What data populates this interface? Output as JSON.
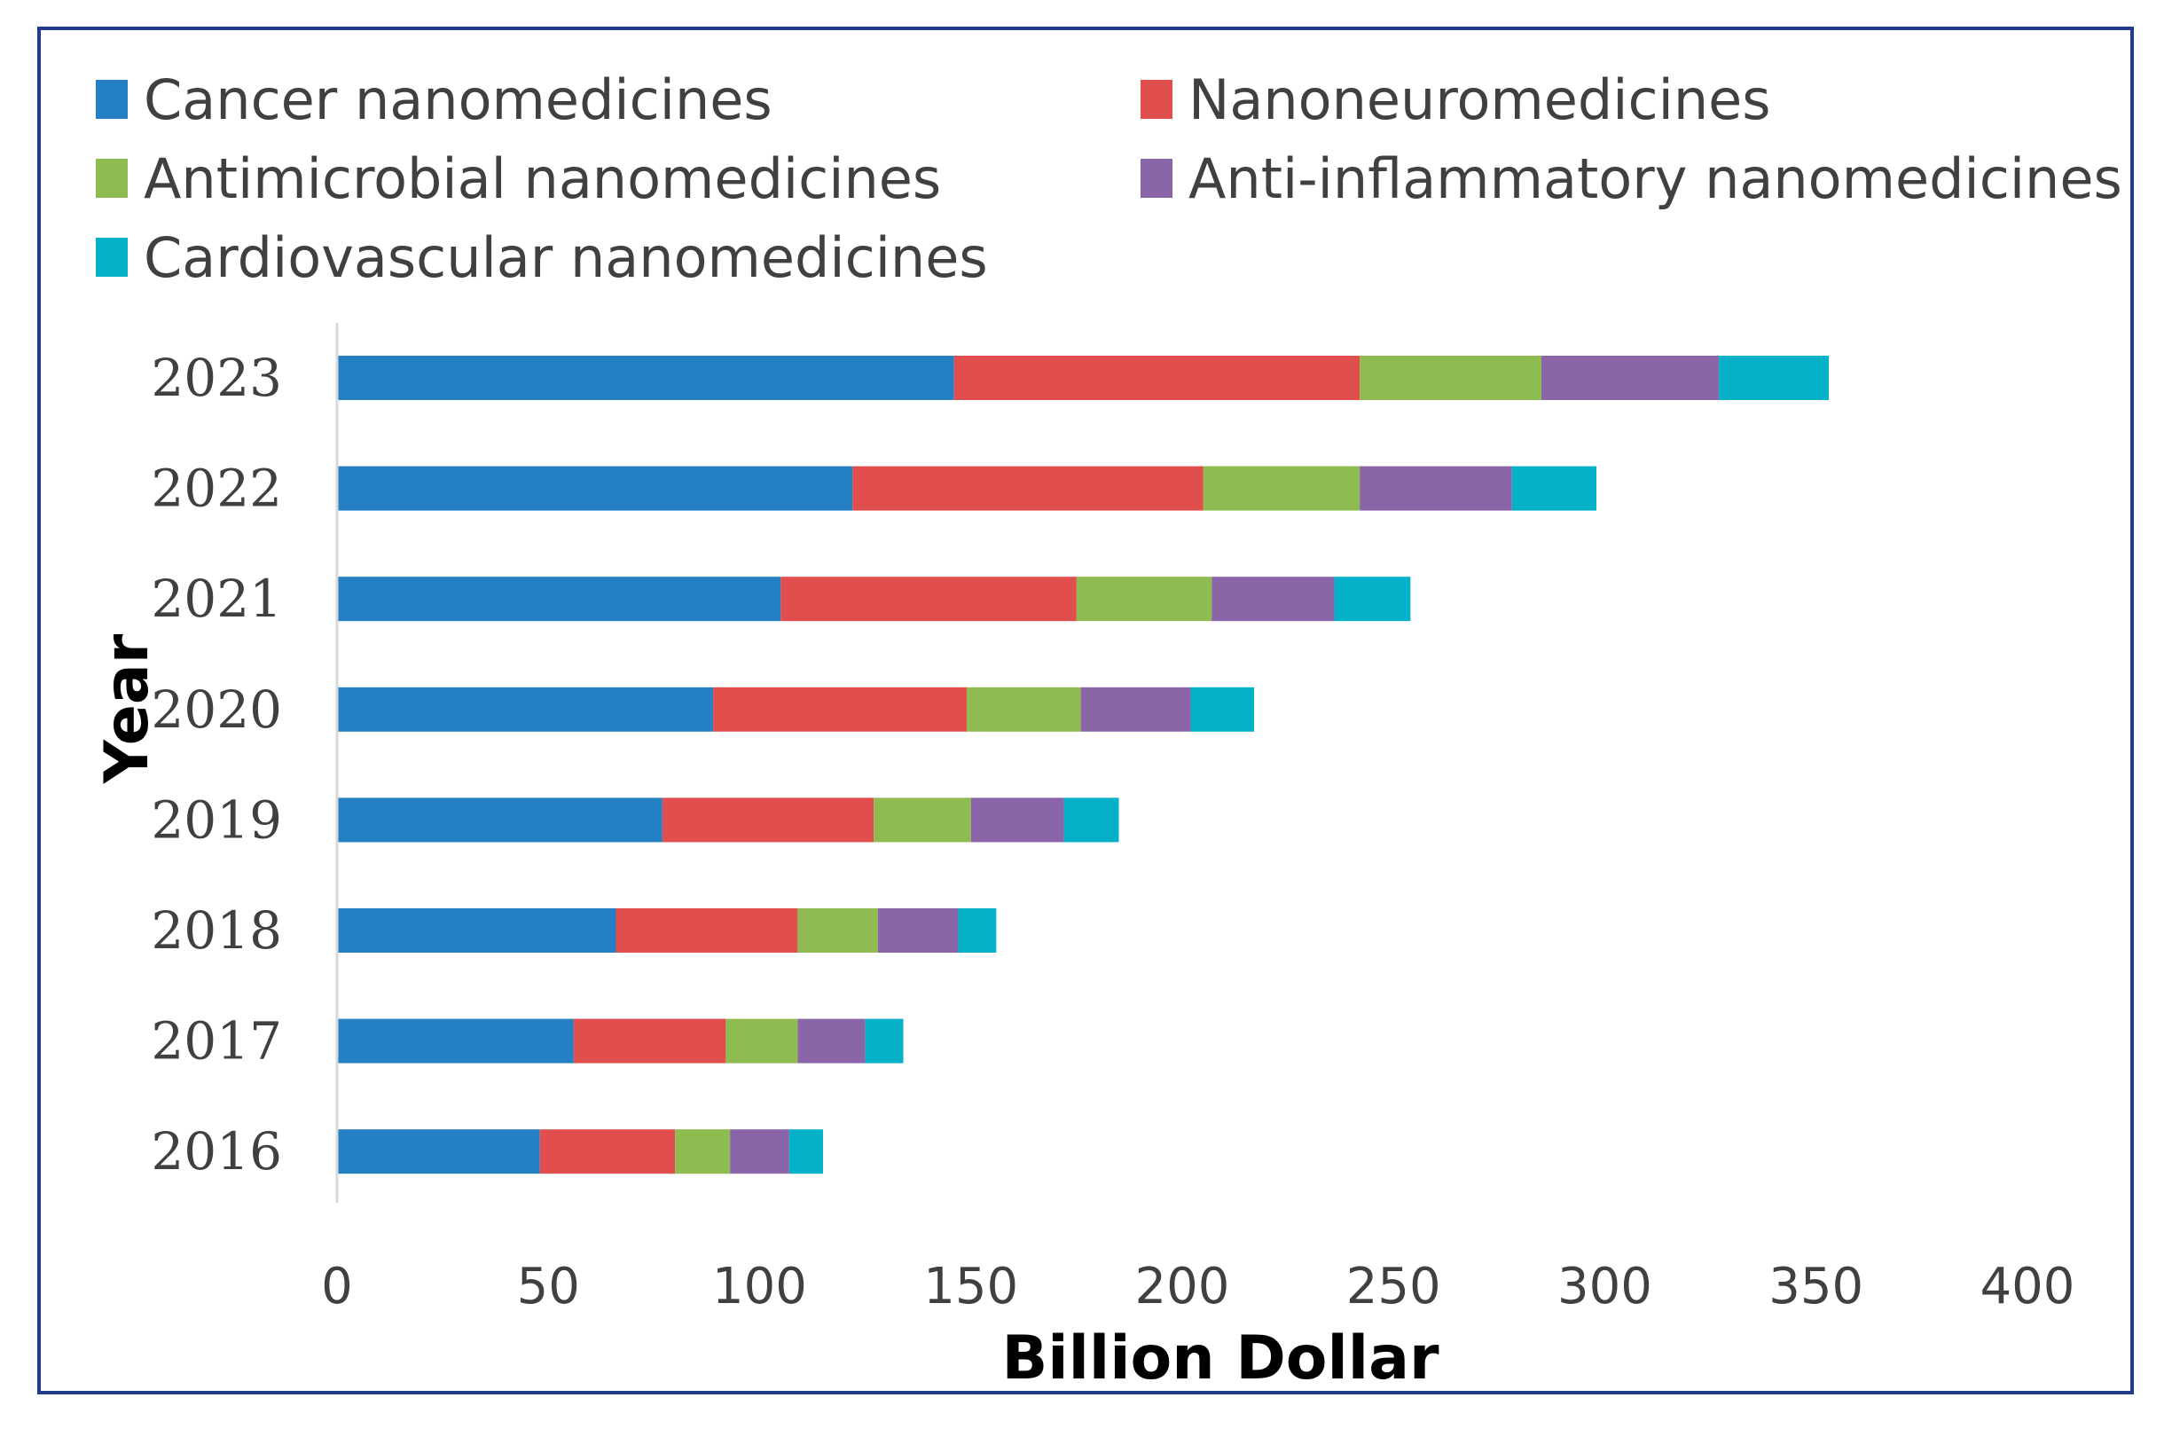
{
  "chart_data": {
    "type": "bar",
    "orientation": "horizontal",
    "stacked": true,
    "title": "",
    "xlabel": "Billion Dollar",
    "ylabel": "Year",
    "xlim": [
      0,
      400
    ],
    "x_ticks": [
      "0",
      "50",
      "100",
      "150",
      "200",
      "250",
      "300",
      "350",
      "400"
    ],
    "categories": [
      "2016",
      "2017",
      "2018",
      "2019",
      "2020",
      "2021",
      "2022",
      "2023"
    ],
    "legend_position": "top",
    "grid": false,
    "series": [
      {
        "name": "Cancer nanomedicines",
        "color": "#2580c3",
        "values": [
          48,
          56,
          66,
          77,
          89,
          105,
          122,
          146
        ]
      },
      {
        "name": "Nanoneuromedicines",
        "color": "#e04e4e",
        "values": [
          32,
          36,
          43,
          50,
          60,
          70,
          83,
          96
        ]
      },
      {
        "name": "Antimicrobial nanomedicines",
        "color": "#8fbc50",
        "values": [
          13,
          17,
          19,
          23,
          27,
          32,
          37,
          43
        ]
      },
      {
        "name": "Anti-inflammatory nanomedicines",
        "color": "#8a65a8",
        "values": [
          14,
          16,
          19,
          22,
          26,
          29,
          36,
          42
        ]
      },
      {
        "name": "Cardiovascular nanomedicines",
        "color": "#05b0c9",
        "values": [
          8,
          9,
          9,
          13,
          15,
          18,
          20,
          26
        ]
      }
    ]
  }
}
